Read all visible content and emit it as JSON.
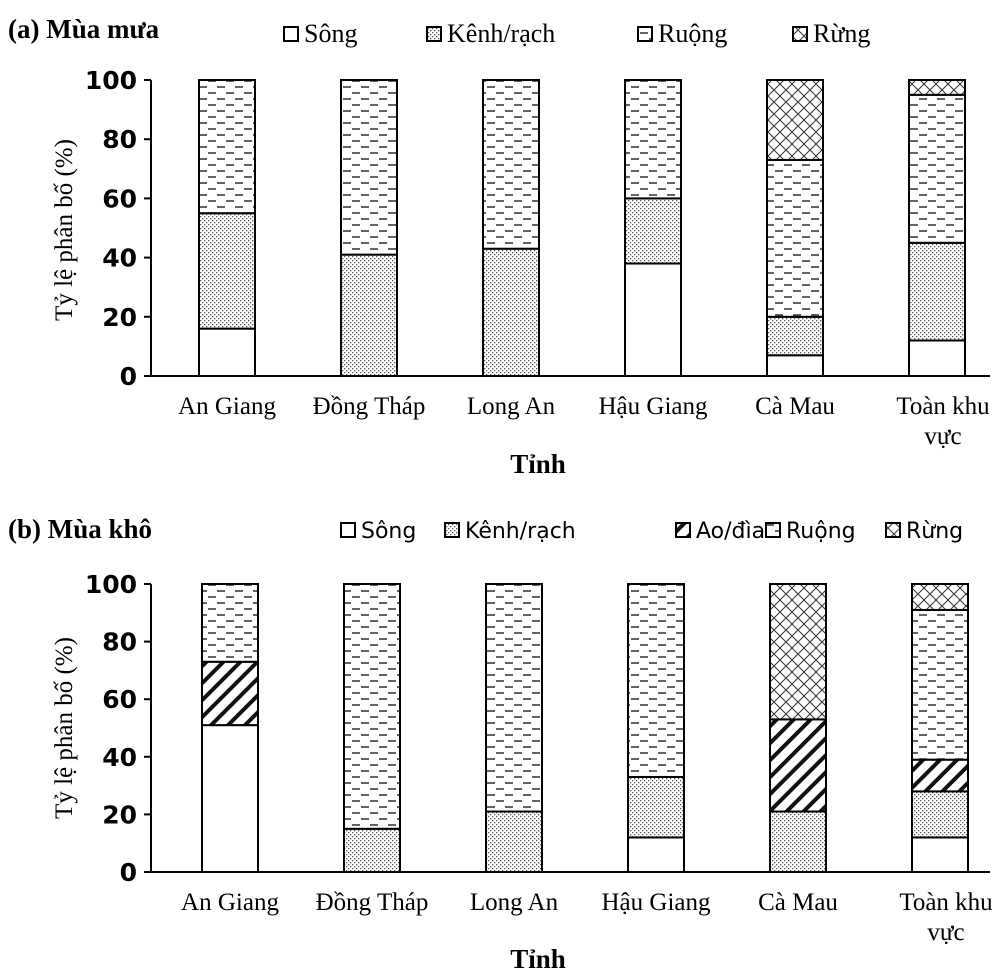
{
  "chart_data": [
    {
      "type": "bar",
      "stacked": true,
      "title": "(a) Mùa mưa",
      "xlabel": "Tỉnh",
      "ylabel": "Tỷ lệ phân bố (%)",
      "ylim": [
        0,
        100
      ],
      "yticks": [
        "0",
        "20",
        "40",
        "60",
        "80",
        "100"
      ],
      "grid": false,
      "legend_position": "top",
      "categories": [
        "An Giang",
        "Đồng Tháp",
        "Long An",
        "Hậu Giang",
        "Cà Mau",
        "Toàn khu vực"
      ],
      "series": [
        {
          "name": "Sông",
          "pattern": "white",
          "values": [
            16,
            0,
            0,
            38,
            7,
            12
          ]
        },
        {
          "name": "Kênh/rạch",
          "pattern": "dots",
          "values": [
            39,
            41,
            43,
            22,
            13,
            33
          ]
        },
        {
          "name": "Ruộng",
          "pattern": "dashes",
          "values": [
            45,
            59,
            57,
            40,
            53,
            50
          ]
        },
        {
          "name": "Rừng",
          "pattern": "cross",
          "values": [
            0,
            0,
            0,
            0,
            27,
            5
          ]
        }
      ]
    },
    {
      "type": "bar",
      "stacked": true,
      "title": "(b) Mùa khô",
      "xlabel": "Tỉnh",
      "ylabel": "Tỷ lệ phân bố (%)",
      "ylim": [
        0,
        100
      ],
      "yticks": [
        "0",
        "20",
        "40",
        "60",
        "80",
        "100"
      ],
      "grid": false,
      "legend_position": "top",
      "categories": [
        "An Giang",
        "Đồng Tháp",
        "Long An",
        "Hậu Giang",
        "Cà Mau",
        "Toàn khu vực"
      ],
      "series": [
        {
          "name": "Sông",
          "pattern": "white",
          "values": [
            51,
            0,
            0,
            12,
            0,
            12
          ]
        },
        {
          "name": "Kênh/rạch",
          "pattern": "dots",
          "values": [
            0,
            15,
            21,
            21,
            21,
            16
          ]
        },
        {
          "name": "Ao/đìa",
          "pattern": "diag",
          "values": [
            22,
            0,
            0,
            0,
            32,
            11
          ]
        },
        {
          "name": "Ruộng",
          "pattern": "dashes",
          "values": [
            27,
            85,
            79,
            67,
            0,
            52
          ]
        },
        {
          "name": "Rừng",
          "pattern": "cross",
          "values": [
            0,
            0,
            0,
            0,
            47,
            9
          ]
        }
      ]
    }
  ]
}
